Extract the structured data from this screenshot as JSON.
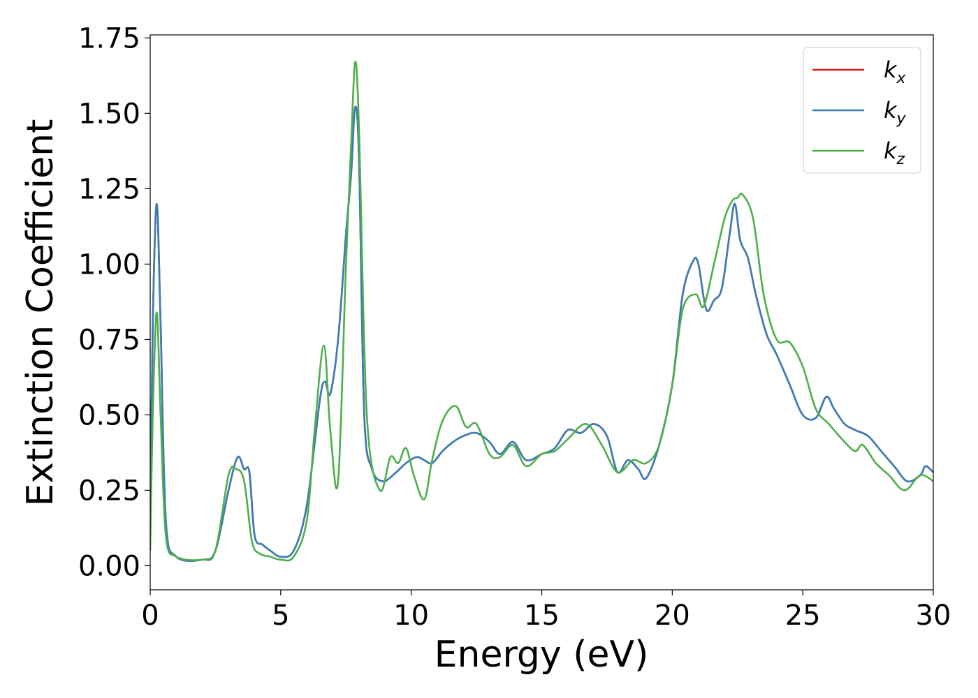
{
  "chart_data": {
    "type": "line",
    "xlabel": "Energy (eV)",
    "ylabel": "Extinction Coefficient",
    "xlim": [
      0,
      30
    ],
    "ylim": [
      -0.08,
      1.76
    ],
    "xticks": [
      "0",
      "5",
      "10",
      "15",
      "20",
      "25",
      "30"
    ],
    "yticks": [
      "0.00",
      "0.25",
      "0.50",
      "0.75",
      "1.00",
      "1.25",
      "1.50",
      "1.75"
    ],
    "grid": false,
    "legend_position": "top-right",
    "series": [
      {
        "name": "k",
        "subscript": "x",
        "color": "#e41a1c",
        "x": [
          0,
          0.1,
          0.25,
          0.4,
          0.6,
          1,
          2,
          2.5,
          3,
          3.35,
          3.6,
          3.8,
          4,
          4.3,
          4.6,
          5,
          5.5,
          6,
          6.5,
          6.7,
          6.9,
          7.2,
          7.5,
          7.7,
          7.85,
          8,
          8.2,
          8.5,
          8.9,
          9.3,
          9.8,
          10.2,
          10.5,
          10.8,
          11.2,
          11.6,
          12,
          12.5,
          13,
          13.4,
          13.9,
          14.4,
          15,
          15.5,
          16,
          16.5,
          17,
          17.5,
          17.9,
          18.3,
          18.7,
          19,
          19.5,
          20,
          20.4,
          20.8,
          21,
          21.3,
          21.6,
          21.9,
          22.2,
          22.4,
          22.6,
          22.9,
          23.2,
          23.6,
          24,
          24.5,
          25,
          25.5,
          25.9,
          26.2,
          26.6,
          27,
          27.5,
          28,
          28.5,
          29,
          29.5,
          29.7,
          30
        ],
        "y": [
          0.1,
          0.8,
          1.2,
          0.8,
          0.15,
          0.03,
          0.02,
          0.05,
          0.25,
          0.36,
          0.32,
          0.31,
          0.1,
          0.07,
          0.05,
          0.03,
          0.05,
          0.2,
          0.55,
          0.61,
          0.57,
          0.75,
          1.1,
          1.3,
          1.52,
          1.35,
          0.5,
          0.32,
          0.28,
          0.3,
          0.34,
          0.36,
          0.35,
          0.34,
          0.38,
          0.41,
          0.43,
          0.44,
          0.41,
          0.37,
          0.41,
          0.35,
          0.37,
          0.39,
          0.45,
          0.44,
          0.47,
          0.43,
          0.31,
          0.35,
          0.32,
          0.29,
          0.4,
          0.6,
          0.9,
          1.01,
          1.0,
          0.85,
          0.88,
          0.92,
          1.1,
          1.2,
          1.08,
          1.02,
          0.9,
          0.77,
          0.7,
          0.6,
          0.5,
          0.49,
          0.56,
          0.52,
          0.47,
          0.45,
          0.43,
          0.38,
          0.33,
          0.28,
          0.3,
          0.33,
          0.31
        ]
      },
      {
        "name": "k",
        "subscript": "y",
        "color": "#377eb8",
        "x": [
          0,
          0.1,
          0.25,
          0.4,
          0.6,
          1,
          2,
          2.5,
          3,
          3.35,
          3.6,
          3.8,
          4,
          4.3,
          4.6,
          5,
          5.5,
          6,
          6.5,
          6.7,
          6.9,
          7.2,
          7.5,
          7.7,
          7.85,
          8,
          8.2,
          8.5,
          8.9,
          9.3,
          9.8,
          10.2,
          10.5,
          10.8,
          11.2,
          11.6,
          12,
          12.5,
          13,
          13.4,
          13.9,
          14.4,
          15,
          15.5,
          16,
          16.5,
          17,
          17.5,
          17.9,
          18.3,
          18.7,
          19,
          19.5,
          20,
          20.4,
          20.8,
          21,
          21.3,
          21.6,
          21.9,
          22.2,
          22.4,
          22.6,
          22.9,
          23.2,
          23.6,
          24,
          24.5,
          25,
          25.5,
          25.9,
          26.2,
          26.6,
          27,
          27.5,
          28,
          28.5,
          29,
          29.5,
          29.7,
          30
        ],
        "y": [
          0.1,
          0.8,
          1.2,
          0.8,
          0.15,
          0.03,
          0.02,
          0.05,
          0.25,
          0.36,
          0.32,
          0.31,
          0.1,
          0.07,
          0.05,
          0.03,
          0.05,
          0.2,
          0.55,
          0.61,
          0.57,
          0.75,
          1.1,
          1.3,
          1.52,
          1.35,
          0.5,
          0.32,
          0.28,
          0.3,
          0.34,
          0.36,
          0.35,
          0.34,
          0.38,
          0.41,
          0.43,
          0.44,
          0.41,
          0.37,
          0.41,
          0.35,
          0.37,
          0.39,
          0.45,
          0.44,
          0.47,
          0.43,
          0.31,
          0.35,
          0.32,
          0.29,
          0.4,
          0.6,
          0.9,
          1.01,
          1.0,
          0.85,
          0.88,
          0.92,
          1.1,
          1.2,
          1.08,
          1.02,
          0.9,
          0.77,
          0.7,
          0.6,
          0.5,
          0.49,
          0.56,
          0.52,
          0.47,
          0.45,
          0.43,
          0.38,
          0.33,
          0.28,
          0.3,
          0.33,
          0.31
        ]
      },
      {
        "name": "k",
        "subscript": "z",
        "color": "#4daf4a",
        "x": [
          0,
          0.1,
          0.25,
          0.4,
          0.6,
          1,
          2,
          2.5,
          3,
          3.3,
          3.6,
          3.9,
          4.2,
          4.6,
          5,
          5.5,
          6,
          6.3,
          6.65,
          6.9,
          7.2,
          7.5,
          7.7,
          7.85,
          8,
          8.3,
          8.8,
          9.2,
          9.5,
          9.8,
          10.1,
          10.5,
          10.8,
          11.2,
          11.7,
          12.1,
          12.5,
          13,
          13.4,
          13.9,
          14.4,
          15,
          15.5,
          16,
          16.7,
          17.3,
          17.9,
          18.5,
          19,
          19.5,
          20,
          20.4,
          20.9,
          21.2,
          21.6,
          22,
          22.3,
          22.5,
          22.7,
          23.1,
          23.5,
          24,
          24.5,
          25,
          25.5,
          26,
          26.5,
          27,
          27.3,
          27.8,
          28.3,
          28.9,
          29.5,
          30
        ],
        "y": [
          0.05,
          0.5,
          0.84,
          0.5,
          0.1,
          0.03,
          0.02,
          0.05,
          0.3,
          0.32,
          0.28,
          0.08,
          0.04,
          0.03,
          0.02,
          0.03,
          0.15,
          0.45,
          0.73,
          0.45,
          0.28,
          1.0,
          1.4,
          1.67,
          1.45,
          0.5,
          0.25,
          0.36,
          0.34,
          0.39,
          0.3,
          0.22,
          0.35,
          0.48,
          0.53,
          0.46,
          0.47,
          0.37,
          0.36,
          0.4,
          0.33,
          0.37,
          0.38,
          0.42,
          0.47,
          0.4,
          0.31,
          0.35,
          0.34,
          0.4,
          0.6,
          0.85,
          0.9,
          0.86,
          1.0,
          1.15,
          1.21,
          1.22,
          1.23,
          1.15,
          0.9,
          0.75,
          0.74,
          0.66,
          0.52,
          0.47,
          0.42,
          0.38,
          0.4,
          0.34,
          0.3,
          0.25,
          0.3,
          0.28
        ]
      }
    ]
  }
}
